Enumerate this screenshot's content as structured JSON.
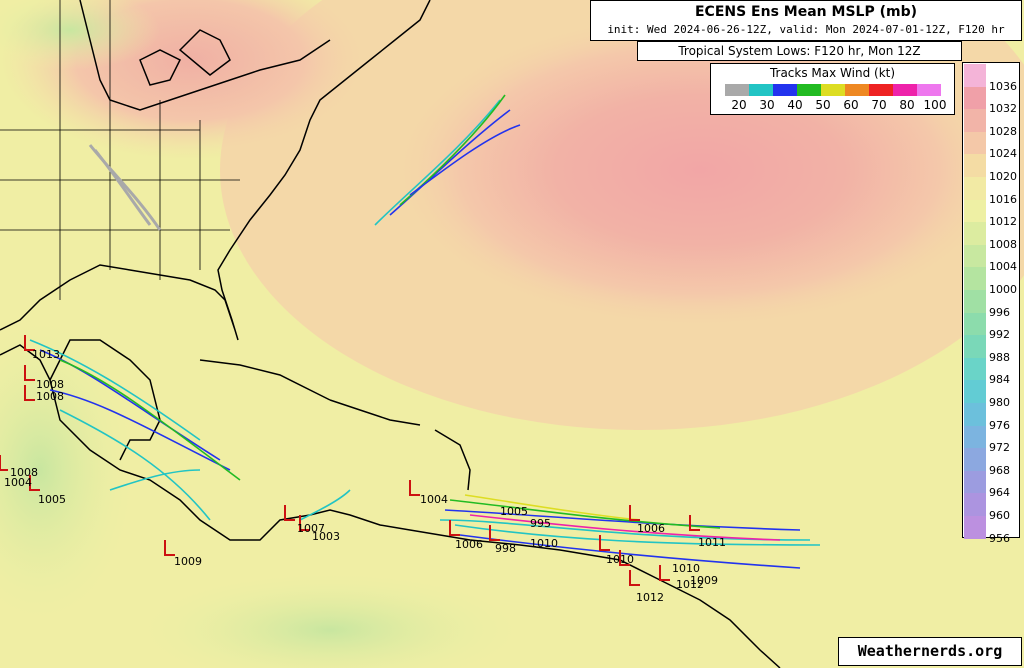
{
  "title": "ECENS Ens Mean MSLP (mb)",
  "subtitle": "init: Wed 2024-06-26-12Z, valid: Mon 2024-07-01-12Z, F120 hr",
  "systems_label": "Tropical System Lows: F120 hr, Mon 12Z",
  "tracks_legend": {
    "title": "Tracks Max Wind (kt)",
    "labels": [
      "20",
      "30",
      "40",
      "50",
      "60",
      "70",
      "80",
      "100"
    ],
    "colors": [
      "#a9a9a9",
      "#22c4c4",
      "#2233ee",
      "#22bb22",
      "#dddd22",
      "#ee8822",
      "#ee2222",
      "#ee22aa",
      "#ee77ee"
    ]
  },
  "pressure_colorbar": {
    "labels": [
      "1036",
      "1032",
      "1028",
      "1024",
      "1020",
      "1016",
      "1012",
      "1008",
      "1004",
      "1000",
      "996",
      "992",
      "988",
      "984",
      "980",
      "976",
      "972",
      "968",
      "964",
      "960",
      "956"
    ],
    "colors": [
      "#f4b4d8",
      "#f0a0a8",
      "#f2b4a8",
      "#f4c8a8",
      "#f4dca4",
      "#f2eaa4",
      "#eef0a4",
      "#dcecA0",
      "#c8e8a0",
      "#b4e4a0",
      "#a0e0a4",
      "#8cdcac",
      "#7ad8b8",
      "#6ad4c8",
      "#62ccd4",
      "#6cc0dc",
      "#7cb4e0",
      "#8ca8e0",
      "#9c9ce0",
      "#ac94e0",
      "#bc90e0"
    ]
  },
  "credit": "Weathernerds.org",
  "pressure_labels": [
    "1013",
    "1008",
    "1008",
    "1008",
    "1004",
    "1005",
    "1009",
    "1007",
    "1003",
    "1004",
    "1005",
    "1006",
    "998",
    "1010",
    "995",
    "1006",
    "1011",
    "1010",
    "1009",
    "1012",
    "1012",
    "1010"
  ]
}
